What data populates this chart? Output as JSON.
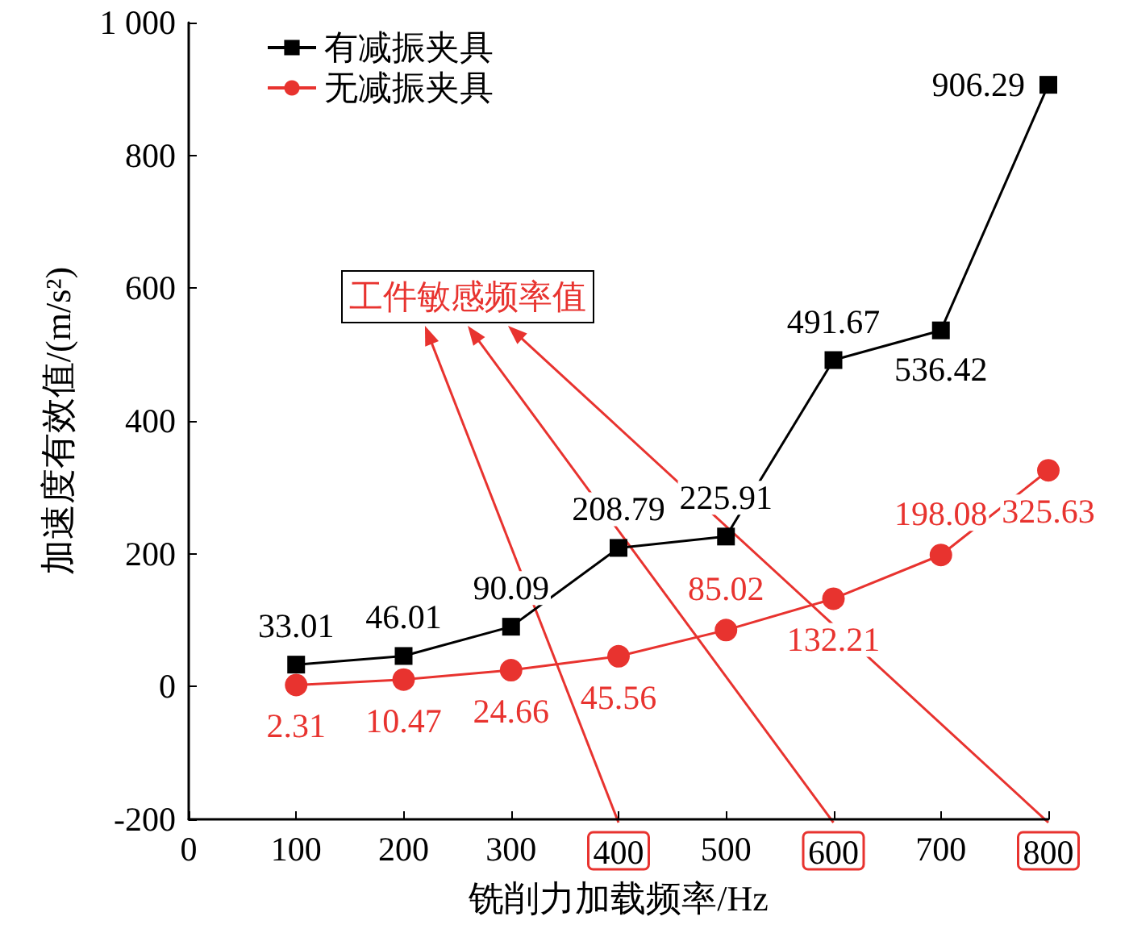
{
  "chart_data": {
    "type": "line",
    "xlabel": "铣削力加载频率/Hz",
    "ylabel": "加速度有效值/(m/s²)",
    "x": [
      100,
      200,
      300,
      400,
      500,
      600,
      700,
      800
    ],
    "series": [
      {
        "name": "有减振夹具",
        "color": "#000000",
        "marker": "square",
        "values": [
          33.01,
          46.01,
          90.09,
          208.79,
          225.91,
          491.67,
          536.42,
          906.29
        ]
      },
      {
        "name": "无减振夹具",
        "color": "#e8332f",
        "marker": "circle",
        "values": [
          2.31,
          10.47,
          24.66,
          45.56,
          85.02,
          132.21,
          198.08,
          325.63
        ]
      }
    ],
    "xlim": [
      0,
      800
    ],
    "xticks": [
      0,
      100,
      200,
      300,
      400,
      500,
      600,
      700,
      800
    ],
    "ylim": [
      -200,
      1000
    ],
    "yticks": [
      -200,
      0,
      200,
      400,
      600,
      800,
      {
        "value": 1000,
        "label": "1 000"
      }
    ],
    "annotations": [
      "工件敏感频率值"
    ],
    "data_labels": true,
    "legend": "top left",
    "grid": false,
    "line_style": "solid"
  }
}
